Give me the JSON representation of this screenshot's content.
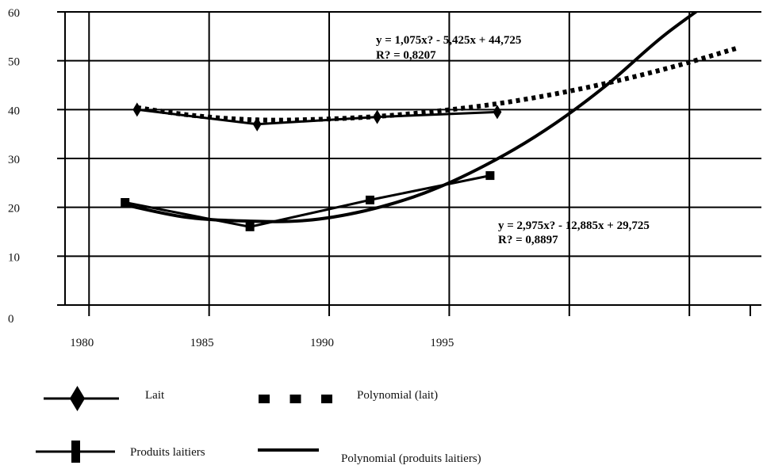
{
  "chart_data": {
    "type": "line",
    "title": "",
    "xlabel": "",
    "ylabel": "",
    "x_tick_labels": [
      "1980",
      "1985",
      "1990",
      "1995"
    ],
    "y_tick_labels": [
      "0",
      "10",
      "20",
      "30",
      "40",
      "50",
      "60"
    ],
    "xlim": [
      1979.5,
      2008.5
    ],
    "ylim": [
      0,
      60
    ],
    "grid": "horizontal-and-vertical",
    "series": [
      {
        "name": "Lait",
        "marker": "diamond",
        "x": [
          1982.5,
          1987.5,
          1992.5,
          1997.5
        ],
        "y": [
          40,
          37,
          38.5,
          39.5
        ]
      },
      {
        "name": "Produits laitiers",
        "marker": "square",
        "x": [
          1982,
          1987.2,
          1992.2,
          1997.2
        ],
        "y": [
          21,
          16,
          21.5,
          26.5
        ]
      },
      {
        "name": "Polynomial (lait)",
        "style": "dotted",
        "x": [
          1982.5,
          1985,
          1987.5,
          1990,
          1992.5,
          1995,
          1997.5,
          2000,
          2002.5,
          2005,
          2007.5
        ],
        "y": [
          40.4,
          38.7,
          37.9,
          38,
          38.6,
          39.7,
          41.2,
          43.3,
          45.9,
          49,
          52.6
        ]
      },
      {
        "name": "Polynomial (produits laitiers)",
        "style": "solid",
        "x": [
          1982,
          1984.5,
          1987,
          1989.5,
          1992,
          1994.5,
          1997,
          1999.5,
          2002,
          2004.5,
          2007.5
        ],
        "y": [
          20.5,
          18,
          17.2,
          17.3,
          19.3,
          23,
          28.6,
          35.8,
          44.8,
          55.4,
          66
        ]
      }
    ],
    "annotations": [
      {
        "text": "y = 1,075x? - 5,425x + 44,725",
        "anchor_series": "Polynomial (lait)"
      },
      {
        "text": "R? = 0,8207",
        "anchor_series": "Polynomial (lait)"
      },
      {
        "text": "y = 2,975x? - 12,885x + 29,725",
        "anchor_series": "Polynomial (produits laitiers)"
      },
      {
        "text": "R? = 0,8897",
        "anchor_series": "Polynomial (produits laitiers)"
      }
    ],
    "legend_position": "bottom"
  },
  "colors": {
    "ink": "#000000",
    "grid": "#000000",
    "background": "#ffffff"
  }
}
